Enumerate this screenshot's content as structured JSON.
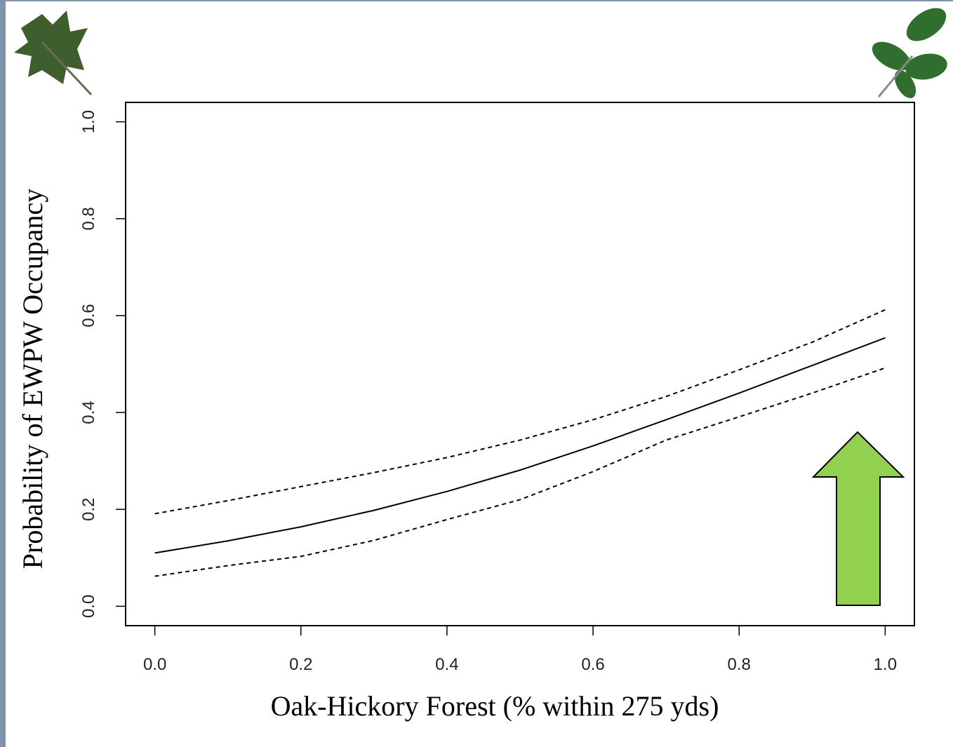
{
  "chart_data": {
    "type": "line",
    "xlabel": "Oak-Hickory Forest (% within 275 yds)",
    "ylabel": "Probability of EWPW Occupancy",
    "x": [
      0,
      0.1,
      0.2,
      0.3,
      0.4,
      0.5,
      0.6,
      0.7,
      0.8,
      0.9,
      1.0
    ],
    "series": [
      {
        "color": "#000000",
        "dashed": false,
        "values": [
          0.11,
          0.135,
          0.164,
          0.198,
          0.237,
          0.281,
          0.331,
          0.385,
          0.44,
          0.497,
          0.554
        ]
      },
      {
        "color": "#000000",
        "dashed": true,
        "values": [
          0.191,
          0.218,
          0.247,
          0.276,
          0.307,
          0.343,
          0.385,
          0.433,
          0.488,
          0.545,
          0.612
        ]
      },
      {
        "color": "#000000",
        "dashed": true,
        "values": [
          0.062,
          0.084,
          0.103,
          0.136,
          0.179,
          0.22,
          0.278,
          0.343,
          0.391,
          0.44,
          0.492
        ]
      }
    ],
    "xlim": [
      -0.04,
      1.04
    ],
    "ylim": [
      -0.04,
      1.04
    ],
    "xticks": [
      {
        "value": 0,
        "label": "0.0"
      },
      0.2,
      0.4,
      0.6,
      0.8,
      {
        "value": 1,
        "label": "1.0"
      }
    ],
    "yticks": [
      {
        "value": 0,
        "label": "0.0"
      },
      0.2,
      0.4,
      0.6,
      0.8,
      {
        "value": 1,
        "label": "1.0"
      }
    ]
  }
}
